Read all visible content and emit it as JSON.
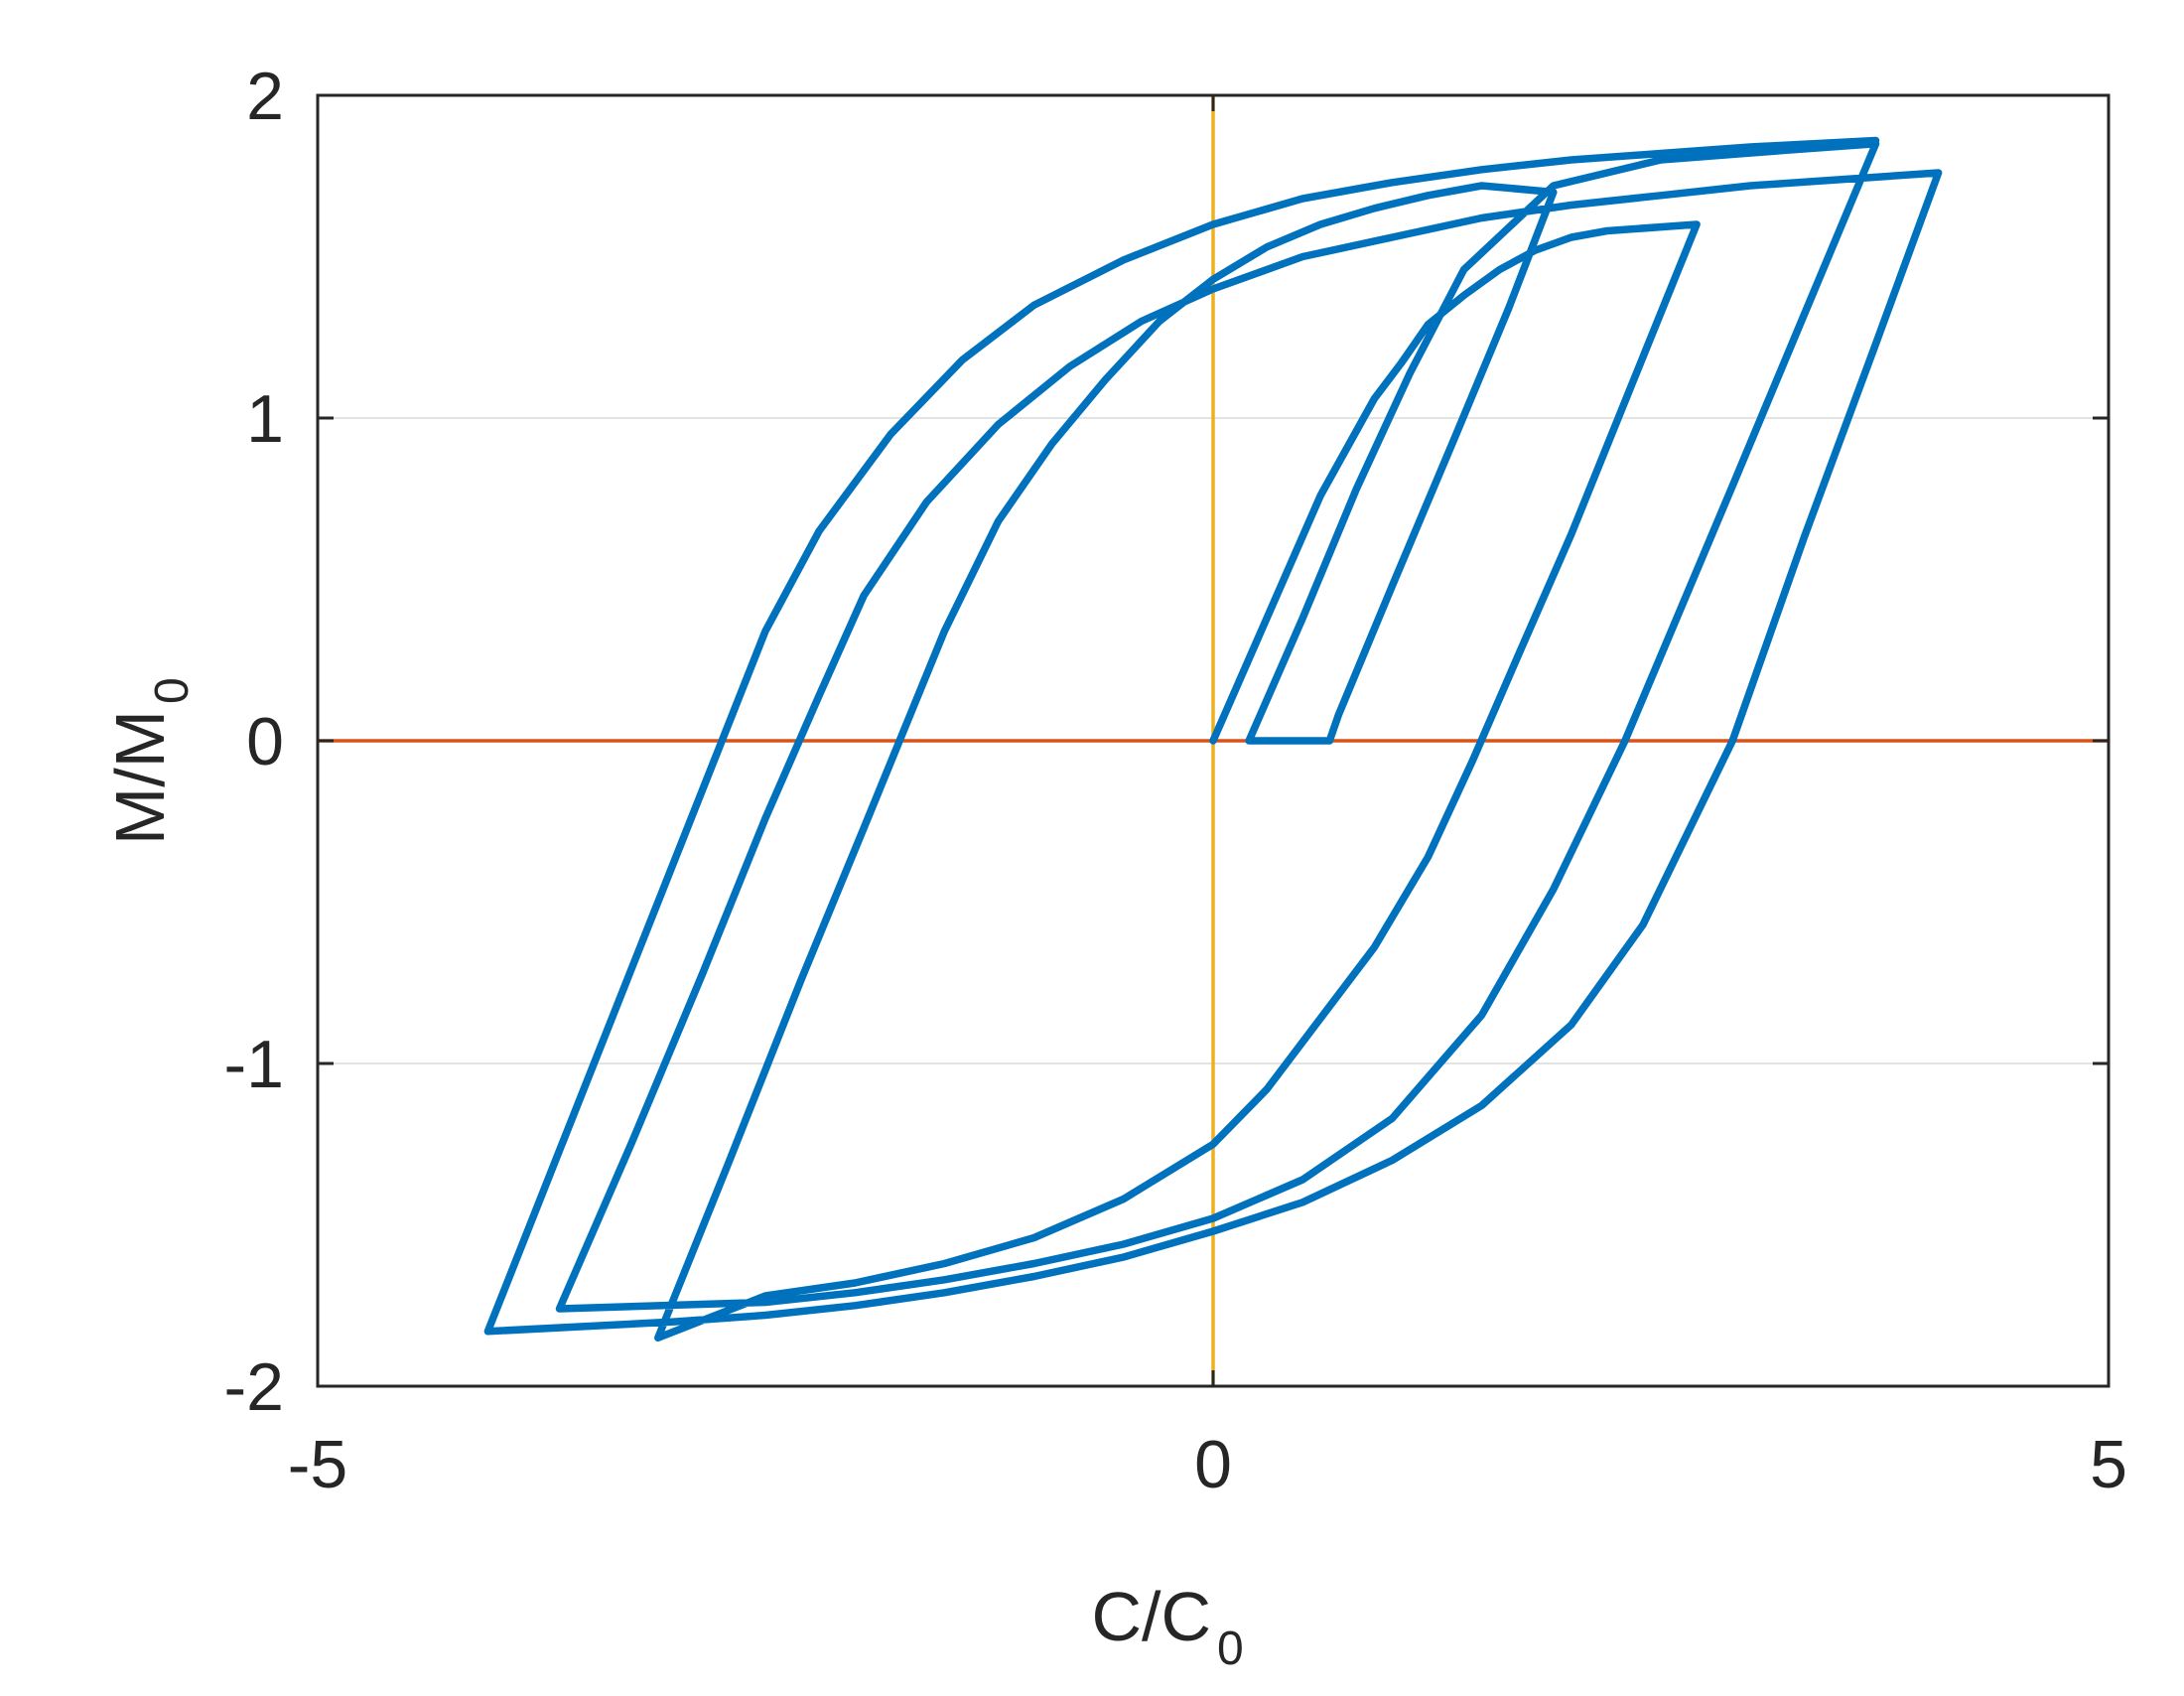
{
  "chart_data": {
    "type": "line",
    "xlabel": {
      "main": "C/C",
      "sub": "0"
    },
    "ylabel": {
      "main": "M/M",
      "sub": "0"
    },
    "xlim": [
      -5,
      5
    ],
    "ylim": [
      -2,
      2
    ],
    "xticks": [
      -5,
      0,
      5
    ],
    "xtick_labels": [
      "-5",
      "0",
      "5"
    ],
    "yticks": [
      -2,
      -1,
      0,
      1,
      2
    ],
    "ytick_labels": [
      "-2",
      "-1",
      "0",
      "1",
      "2"
    ],
    "grid": "horizontal",
    "colors": {
      "series": "#0072BD",
      "zero_h": "#D95319",
      "zero_v": "#EDB120",
      "grid": "#e3e3e3",
      "axes": "#262626"
    },
    "series": [
      {
        "points": [
          [
            0.0,
            0.0
          ],
          [
            0.3,
            0.38
          ],
          [
            0.6,
            0.76
          ],
          [
            0.9,
            1.06
          ],
          [
            1.05,
            1.17
          ],
          [
            1.2,
            1.29
          ],
          [
            1.4,
            1.38
          ],
          [
            1.6,
            1.46
          ],
          [
            1.8,
            1.52
          ],
          [
            2.0,
            1.56
          ],
          [
            2.2,
            1.58
          ],
          [
            2.7,
            1.6
          ],
          [
            2.35,
            1.12
          ],
          [
            2.0,
            0.64
          ],
          [
            1.7,
            0.26
          ],
          [
            1.45,
            -0.06
          ],
          [
            1.2,
            -0.36
          ],
          [
            0.9,
            -0.64
          ],
          [
            0.6,
            -0.86
          ],
          [
            0.3,
            -1.08
          ],
          [
            0.0,
            -1.25
          ],
          [
            -0.5,
            -1.42
          ],
          [
            -1.0,
            -1.54
          ],
          [
            -1.5,
            -1.62
          ],
          [
            -2.0,
            -1.68
          ],
          [
            -2.5,
            -1.72
          ],
          [
            -3.1,
            -1.85
          ],
          [
            -2.7,
            -1.3
          ],
          [
            -2.3,
            -0.74
          ],
          [
            -1.95,
            -0.27
          ],
          [
            -1.5,
            0.34
          ],
          [
            -1.2,
            0.68
          ],
          [
            -0.9,
            0.92
          ],
          [
            -0.6,
            1.12
          ],
          [
            -0.3,
            1.3
          ],
          [
            0.0,
            1.43
          ],
          [
            0.3,
            1.53
          ],
          [
            0.6,
            1.6
          ],
          [
            0.9,
            1.65
          ],
          [
            1.2,
            1.69
          ],
          [
            1.5,
            1.72
          ],
          [
            1.9,
            1.7
          ],
          [
            1.65,
            1.34
          ],
          [
            1.35,
            0.94
          ],
          [
            1.0,
            0.48
          ],
          [
            0.7,
            0.08
          ],
          [
            0.65,
            0.0
          ],
          [
            0.2,
            0.0
          ],
          [
            0.5,
            0.38
          ],
          [
            0.8,
            0.78
          ],
          [
            1.1,
            1.14
          ],
          [
            1.4,
            1.46
          ],
          [
            1.9,
            1.72
          ],
          [
            2.5,
            1.8
          ],
          [
            3.2,
            1.83
          ],
          [
            3.7,
            1.85
          ],
          [
            3.3,
            1.32
          ],
          [
            2.9,
            0.79
          ],
          [
            2.3,
            0.0
          ],
          [
            1.9,
            -0.46
          ],
          [
            1.5,
            -0.85
          ],
          [
            1.0,
            -1.17
          ],
          [
            0.5,
            -1.36
          ],
          [
            0.0,
            -1.48
          ],
          [
            -0.5,
            -1.56
          ],
          [
            -1.0,
            -1.62
          ],
          [
            -1.5,
            -1.67
          ],
          [
            -2.0,
            -1.71
          ],
          [
            -2.5,
            -1.74
          ],
          [
            -3.65,
            -1.76
          ],
          [
            -3.25,
            -1.25
          ],
          [
            -2.85,
            -0.72
          ],
          [
            -2.5,
            -0.24
          ],
          [
            -2.2,
            0.14
          ],
          [
            -1.95,
            0.45
          ],
          [
            -1.6,
            0.74
          ],
          [
            -1.2,
            0.98
          ],
          [
            -0.8,
            1.16
          ],
          [
            -0.4,
            1.3
          ],
          [
            0.0,
            1.4
          ],
          [
            0.5,
            1.5
          ],
          [
            1.0,
            1.56
          ],
          [
            1.5,
            1.62
          ],
          [
            2.0,
            1.66
          ],
          [
            2.5,
            1.69
          ],
          [
            3.0,
            1.72
          ],
          [
            4.05,
            1.76
          ],
          [
            3.7,
            1.23
          ],
          [
            3.3,
            0.63
          ],
          [
            2.9,
            0.0
          ],
          [
            2.4,
            -0.57
          ],
          [
            2.0,
            -0.88
          ],
          [
            1.5,
            -1.13
          ],
          [
            1.0,
            -1.3
          ],
          [
            0.5,
            -1.43
          ],
          [
            0.0,
            -1.52
          ],
          [
            -0.5,
            -1.6
          ],
          [
            -1.0,
            -1.66
          ],
          [
            -1.5,
            -1.71
          ],
          [
            -2.0,
            -1.75
          ],
          [
            -2.5,
            -1.78
          ],
          [
            -3.0,
            -1.8
          ],
          [
            -4.05,
            -1.83
          ],
          [
            -3.65,
            -1.27
          ],
          [
            -3.25,
            -0.71
          ],
          [
            -2.85,
            -0.15
          ],
          [
            -2.5,
            0.34
          ],
          [
            -2.2,
            0.65
          ],
          [
            -1.8,
            0.95
          ],
          [
            -1.4,
            1.18
          ],
          [
            -1.0,
            1.35
          ],
          [
            -0.5,
            1.49
          ],
          [
            0.0,
            1.6
          ],
          [
            0.5,
            1.68
          ],
          [
            1.0,
            1.73
          ],
          [
            1.5,
            1.77
          ],
          [
            2.0,
            1.8
          ],
          [
            2.5,
            1.82
          ],
          [
            3.0,
            1.84
          ],
          [
            3.7,
            1.86
          ]
        ]
      }
    ]
  }
}
